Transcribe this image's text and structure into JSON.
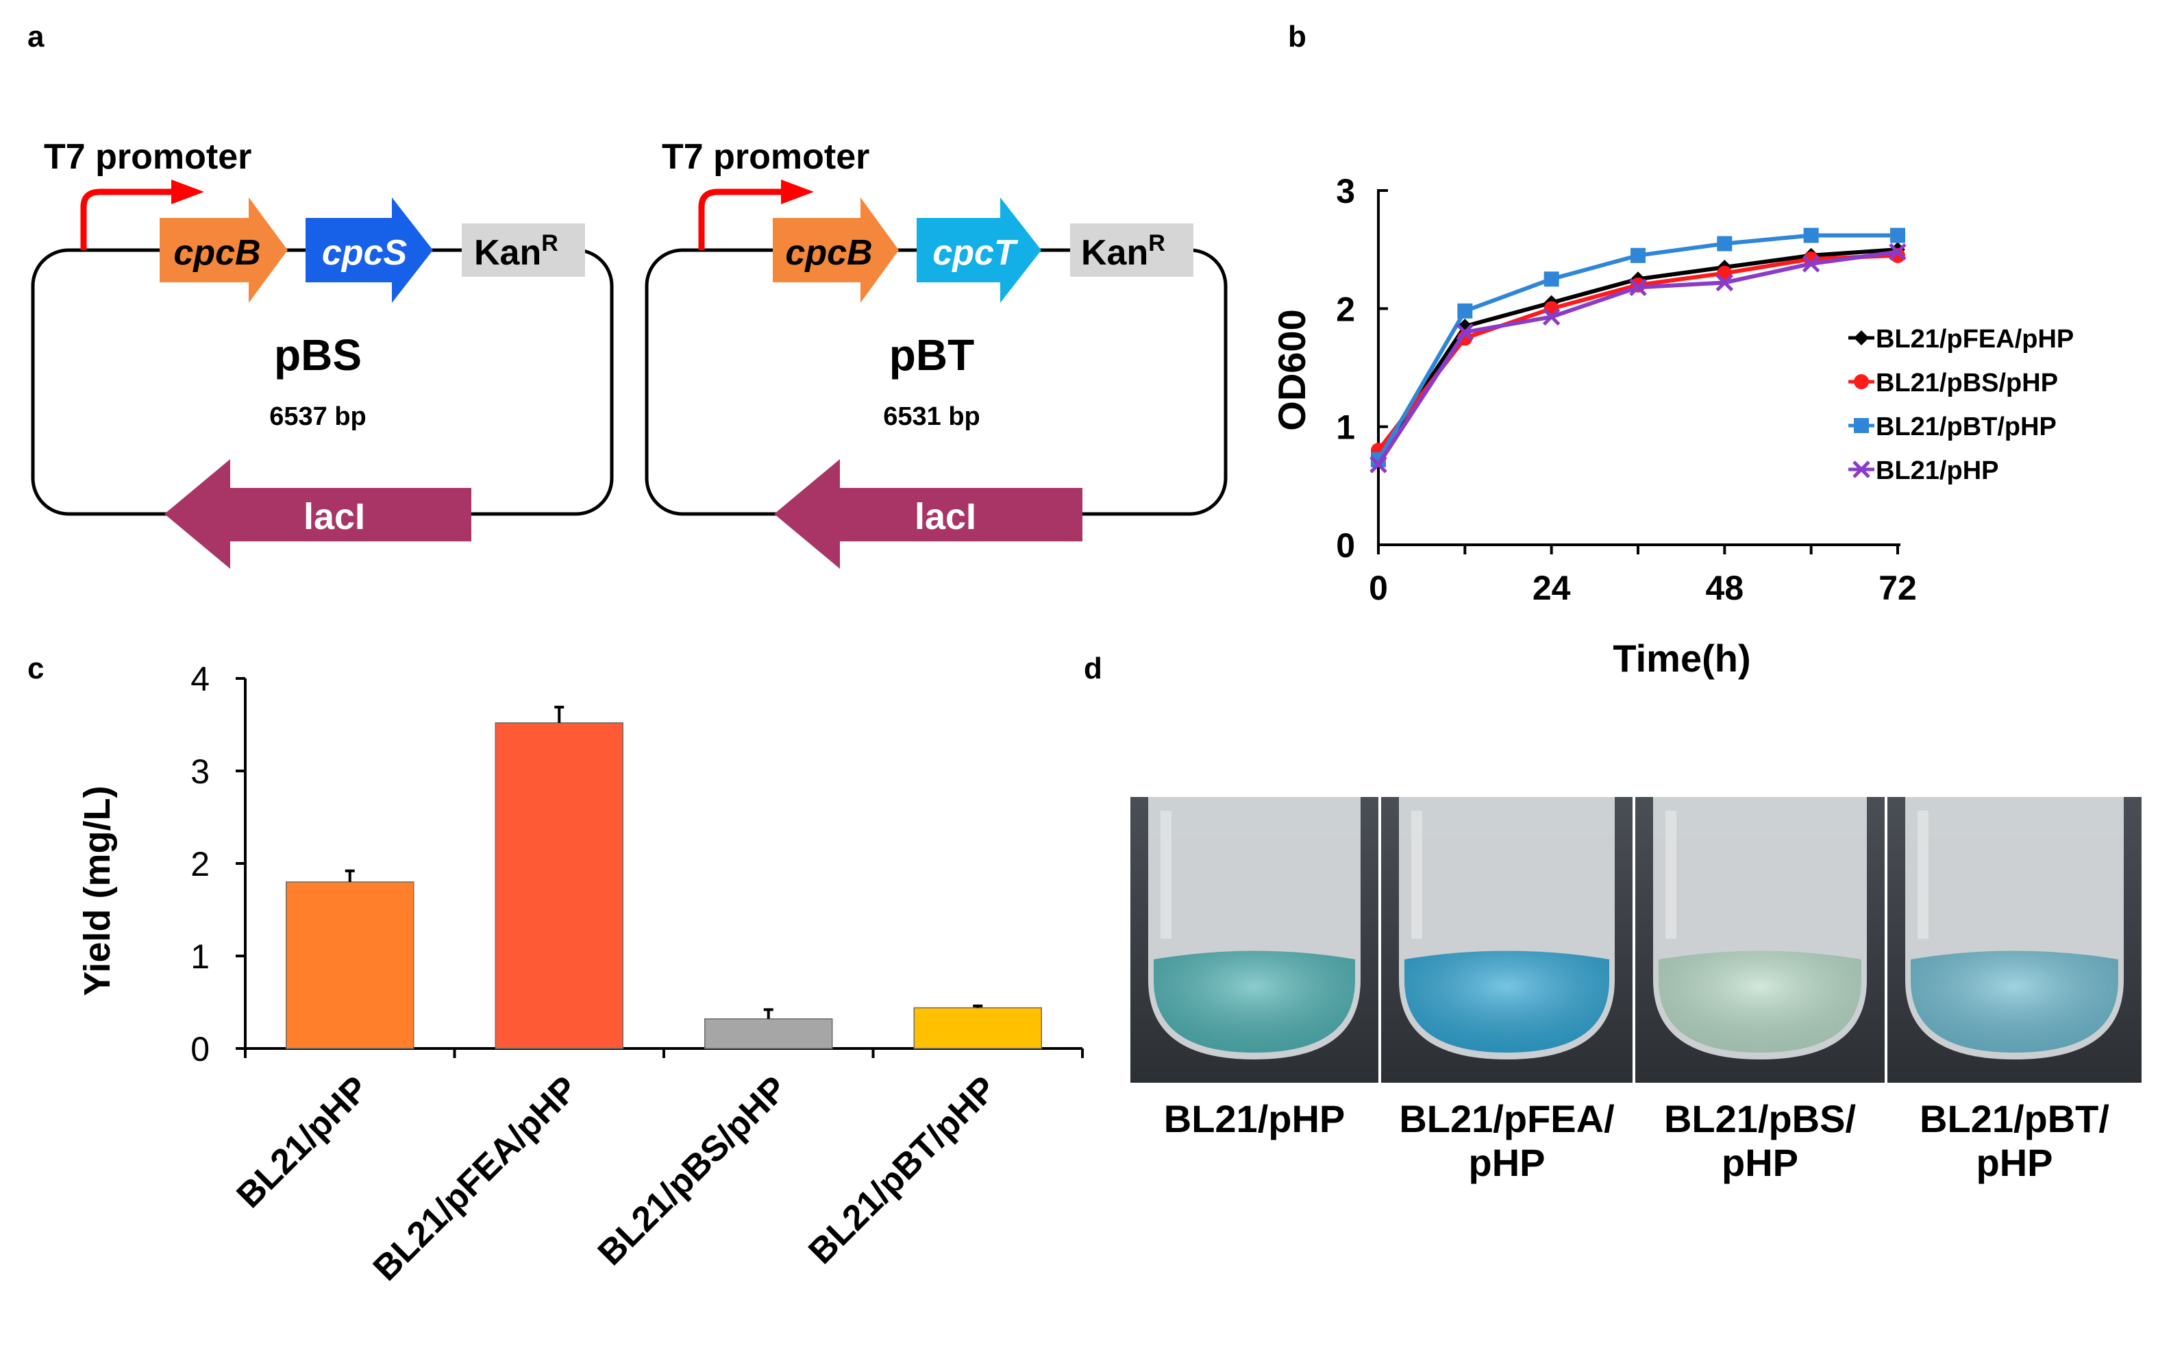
{
  "panels": {
    "a": "a",
    "b": "b",
    "c": "c",
    "d": "d"
  },
  "colors": {
    "promoter": "#ff0000",
    "cpcB": "#f4873b",
    "cpcS": "#1760e8",
    "cpcT": "#12b0e6",
    "kan": "#d6d6d6",
    "lacI": "#a83566",
    "s_fea": "#000000",
    "s_bs": "#ff1a1a",
    "s_bt": "#2f86d8",
    "s_hp": "#8a3cc8",
    "bar1": "#ff7f2a",
    "bar2": "#ff5a36",
    "bar3": "#a6a6a6",
    "bar4": "#ffc000"
  },
  "plasmids": [
    {
      "promoter": "T7 promoter",
      "gene1": "cpcB",
      "gene2": "cpcS",
      "kan": "Kan",
      "kan_sup": "R",
      "name": "pBS",
      "size": "6537 bp",
      "repressor": "lacI"
    },
    {
      "promoter": "T7 promoter",
      "gene1": "cpcB",
      "gene2": "cpcT",
      "kan": "Kan",
      "kan_sup": "R",
      "name": "pBT",
      "size": "6531 bp",
      "repressor": "lacI"
    }
  ],
  "chart_data": [
    {
      "type": "line",
      "title": "",
      "xlabel": "Time(h)",
      "ylabel": "OD600",
      "xlim": [
        0,
        72
      ],
      "ylim": [
        0,
        3
      ],
      "xticks": [
        0,
        24,
        48,
        72
      ],
      "yticks": [
        0,
        1,
        2,
        3
      ],
      "x": [
        0,
        12,
        24,
        36,
        48,
        60,
        72
      ],
      "series": [
        {
          "name": "BL21/pFEA/pHP",
          "marker": "diamond",
          "values": [
            0.75,
            1.85,
            2.05,
            2.25,
            2.35,
            2.45,
            2.5
          ]
        },
        {
          "name": "BL21/pBS/pHP",
          "marker": "circle",
          "values": [
            0.8,
            1.75,
            2.0,
            2.2,
            2.3,
            2.42,
            2.45
          ]
        },
        {
          "name": "BL21/pBT/pHP",
          "marker": "square",
          "values": [
            0.72,
            1.98,
            2.25,
            2.45,
            2.55,
            2.62,
            2.62
          ]
        },
        {
          "name": "BL21/pHP",
          "marker": "x",
          "values": [
            0.68,
            1.8,
            1.93,
            2.18,
            2.22,
            2.38,
            2.48
          ]
        }
      ]
    },
    {
      "type": "bar",
      "title": "",
      "xlabel": "",
      "ylabel": "Yield (mg/L)",
      "ylim": [
        0,
        4
      ],
      "yticks": [
        0,
        1,
        2,
        3,
        4
      ],
      "categories": [
        "BL21/pHP",
        "BL21/pFEA/pHP",
        "BL21/pBS/pHP",
        "BL21/pBT/pHP"
      ],
      "values": [
        1.8,
        3.52,
        0.32,
        0.44
      ],
      "errors": [
        0.12,
        0.17,
        0.1,
        0.02
      ]
    }
  ],
  "photo": {
    "tubes": [
      {
        "line1": "BL21/pHP",
        "line2": "",
        "color": "#4fb3b5"
      },
      {
        "line1": "BL21/pFEA/",
        "line2": "pHP",
        "color": "#2fa6d6"
      },
      {
        "line1": "BL21/pBS/",
        "line2": "pHP",
        "color": "#b9dcc8"
      },
      {
        "line1": "BL21/pBT/",
        "line2": "pHP",
        "color": "#6fbcd2"
      }
    ]
  }
}
